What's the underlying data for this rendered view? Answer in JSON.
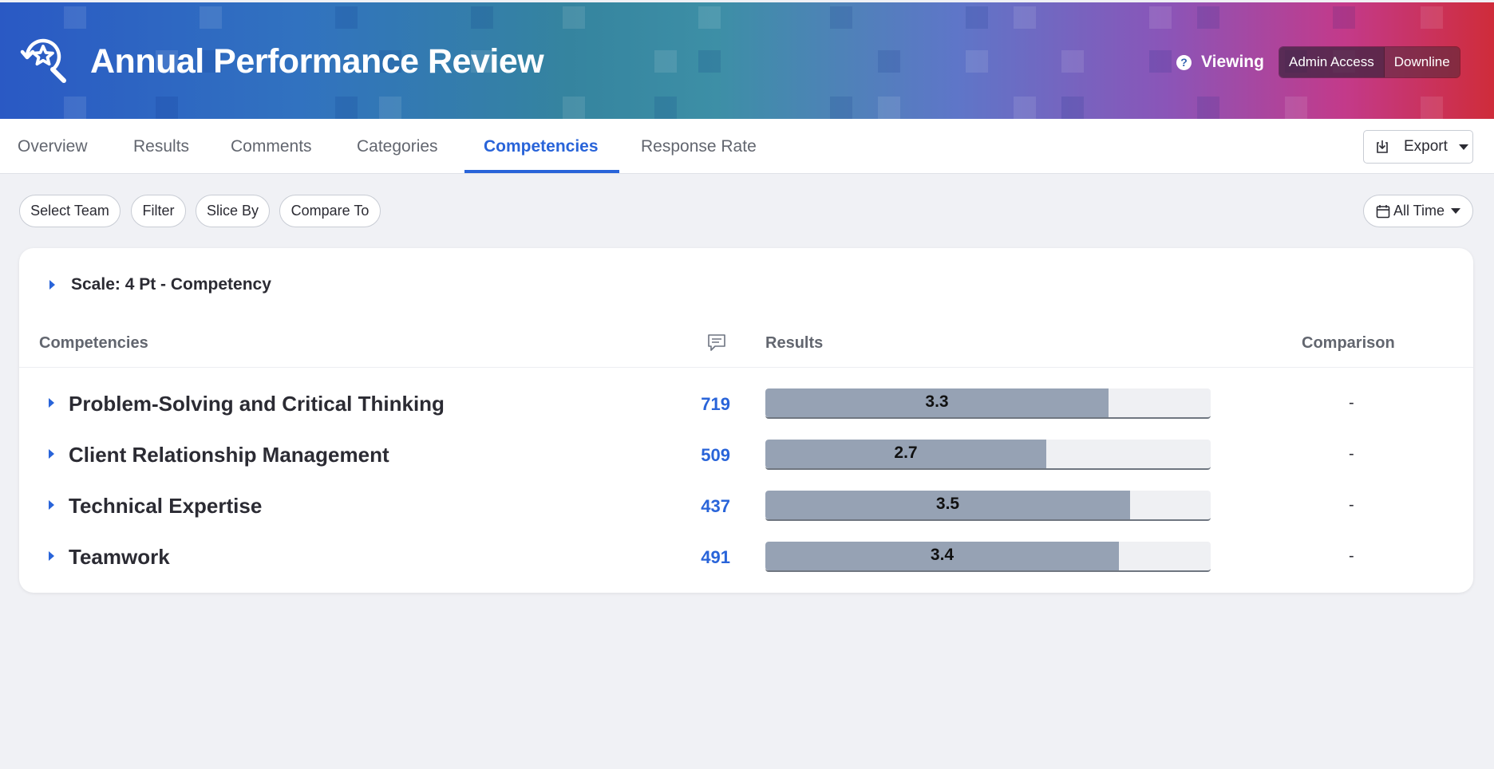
{
  "header": {
    "title": "Annual Performance Review",
    "viewing_label": "Viewing",
    "access_options": [
      "Admin Access",
      "Downline"
    ],
    "selected_access": "Admin Access"
  },
  "tabs": [
    {
      "label": "Overview",
      "active": false
    },
    {
      "label": "Results",
      "active": false
    },
    {
      "label": "Comments",
      "active": false
    },
    {
      "label": "Categories",
      "active": false
    },
    {
      "label": "Competencies",
      "active": true
    },
    {
      "label": "Response Rate",
      "active": false
    }
  ],
  "toolbar": {
    "export_label": "Export"
  },
  "filters": {
    "pills": [
      "Select Team",
      "Filter",
      "Slice By",
      "Compare To"
    ],
    "date_range": "All Time"
  },
  "card": {
    "scale_label": "Scale: 4 Pt - Competency",
    "columns": {
      "competencies": "Competencies",
      "results": "Results",
      "comparison": "Comparison"
    },
    "scale_max": 4,
    "rows": [
      {
        "name": "Problem-Solving and Critical Thinking",
        "comments": "719",
        "score": 3.3,
        "score_label": "3.3",
        "comparison": "-"
      },
      {
        "name": "Client Relationship Management",
        "comments": "509",
        "score": 2.7,
        "score_label": "2.7",
        "comparison": "-"
      },
      {
        "name": "Technical Expertise",
        "comments": "437",
        "score": 3.5,
        "score_label": "3.5",
        "comparison": "-"
      },
      {
        "name": "Teamwork",
        "comments": "491",
        "score": 3.4,
        "score_label": "3.4",
        "comparison": "-"
      }
    ]
  },
  "colors": {
    "accent": "#2964d9",
    "bar_fill": "#96a2b4",
    "bar_track": "#eff0f3"
  }
}
